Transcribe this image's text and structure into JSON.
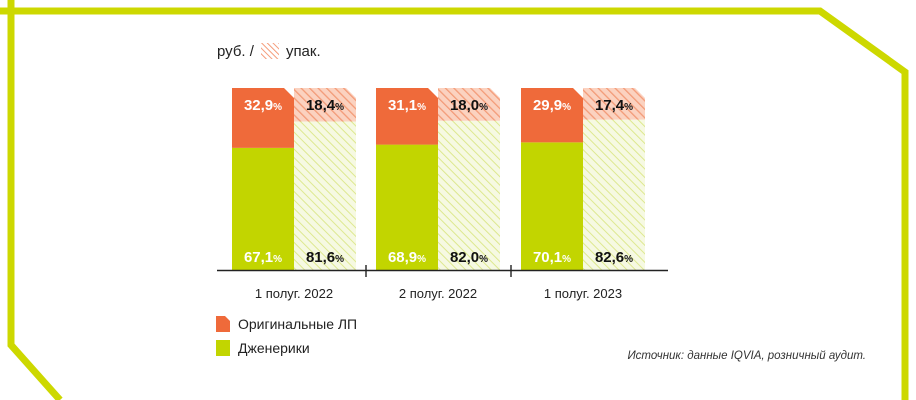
{
  "unit": {
    "rub": "руб. /",
    "pack": "упак."
  },
  "colors": {
    "original": "#ef6a3a",
    "generic": "#c2d500",
    "original_hatch": "#f6a585",
    "generic_hatch": "#dbe58a",
    "frame": "#cdd800"
  },
  "legend": [
    {
      "label": "Оригинальные ЛП",
      "icon": "orange-swatch-icon"
    },
    {
      "label": "Дженерики",
      "icon": "green-swatch-icon"
    }
  ],
  "source": "Источник: данные IQVIA, розничный аудит.",
  "chart_data": {
    "type": "bar",
    "stacked": true,
    "percent": true,
    "categories": [
      "1 полуг. 2022",
      "2 полуг. 2022",
      "1 полуг. 2023"
    ],
    "bar_types": [
      "руб.",
      "упак."
    ],
    "series": [
      {
        "name": "Дженерики",
        "rub": [
          67.1,
          68.9,
          70.1
        ],
        "pack": [
          81.6,
          82.0,
          82.6
        ],
        "rub_labels": [
          "67,1",
          "68,9",
          "70,1"
        ],
        "pack_labels": [
          "81,6",
          "82,0",
          "82,6"
        ]
      },
      {
        "name": "Оригинальные ЛП",
        "rub": [
          32.9,
          31.1,
          29.9
        ],
        "pack": [
          18.4,
          18.0,
          17.4
        ],
        "rub_labels": [
          "32,9",
          "31,1",
          "29,9"
        ],
        "pack_labels": [
          "18,4",
          "18,0",
          "17,4"
        ]
      }
    ],
    "ylim": [
      0,
      100
    ],
    "grid": false
  }
}
